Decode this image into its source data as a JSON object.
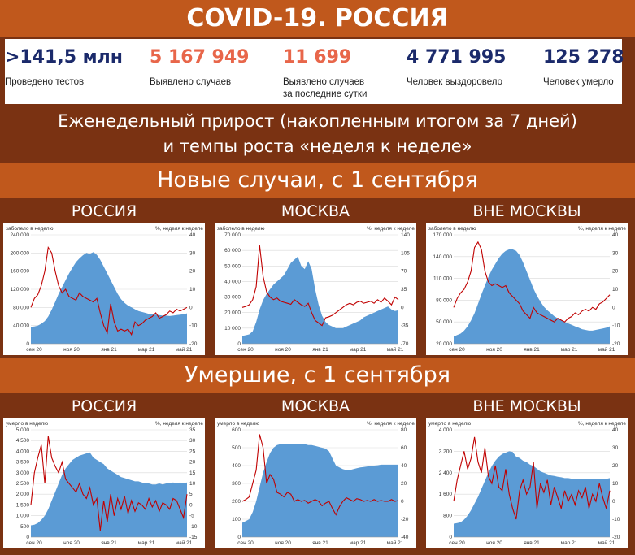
{
  "title": "COVID-19. РОССИЯ",
  "stats": [
    {
      "value": ">141,5 млн",
      "label": "Проведено тестов",
      "label2": "",
      "color": "#1b2a6b"
    },
    {
      "value": "5 167 949",
      "label": "Выявлено случаев",
      "label2": "",
      "color": "#e8664a"
    },
    {
      "value": "11 699",
      "label": "Выявлено случаев",
      "label2": "за последние сутки",
      "color": "#e8664a"
    },
    {
      "value": "4 771 995",
      "label": "Человек выздоровело",
      "label2": "",
      "color": "#1b2a6b"
    },
    {
      "value": "125 278",
      "label": "Человек умерло",
      "label2": "",
      "color": "#1b2a6b"
    }
  ],
  "weekly": {
    "line1": "Еженедельный прирост (накопленным итогом за 7 дней)",
    "line2": "и темпы роста «неделя к неделе»"
  },
  "cases_header": "Новые случаи, с 1 сентября",
  "deaths_header": "Умершие, с 1 сентября",
  "colors": {
    "area": "#5b9bd5",
    "line": "#c00000",
    "band_light": "#c0581c",
    "band_dark": "#7a3212"
  },
  "chart_data": [
    {
      "type": "area",
      "panel": "РОССИЯ",
      "section": "cases",
      "left_label": "заболело в неделю",
      "right_label": "%, неделя к неделе",
      "x_ticks": [
        "сен 20",
        "ноя 20",
        "янв 21",
        "мар 21",
        "май 21"
      ],
      "y_left": {
        "min": 0,
        "max": 240000,
        "ticks": [
          "0",
          "40 000",
          "80 000",
          "120 000",
          "160 000",
          "200 000",
          "240 000"
        ]
      },
      "y_right": {
        "min": -20,
        "max": 40,
        "ticks": [
          "-20",
          "-10",
          "0",
          "10",
          "20",
          "30",
          "40"
        ]
      },
      "area_values": [
        37000,
        38000,
        40000,
        44000,
        50000,
        60000,
        75000,
        92000,
        110000,
        125000,
        140000,
        155000,
        168000,
        180000,
        188000,
        195000,
        200000,
        198000,
        202000,
        196000,
        185000,
        170000,
        155000,
        140000,
        125000,
        110000,
        98000,
        90000,
        84000,
        80000,
        76000,
        72000,
        70000,
        68000,
        66000,
        65000,
        64000,
        63000,
        62000,
        62000,
        61000,
        62000,
        63000,
        64000,
        65000,
        67000
      ],
      "line_values": [
        0,
        5,
        7,
        12,
        20,
        33,
        30,
        20,
        12,
        8,
        10,
        6,
        5,
        4,
        8,
        6,
        5,
        4,
        3,
        5,
        -3,
        -10,
        -14,
        2,
        -8,
        -13,
        -12,
        -13,
        -12,
        -15,
        -8,
        -10,
        -9,
        -7,
        -6,
        -5,
        -3,
        -6,
        -5,
        -4,
        -2,
        -3,
        -1,
        -2,
        -1,
        0
      ]
    },
    {
      "type": "area",
      "panel": "МОСКВА",
      "section": "cases",
      "left_label": "заболело в неделю",
      "right_label": "%, неделя к неделе",
      "x_ticks": [
        "сен 20",
        "ноя 20",
        "янв 21",
        "мар 21",
        "май 21"
      ],
      "y_left": {
        "min": 0,
        "max": 70000,
        "ticks": [
          "0",
          "10 000",
          "20 000",
          "30 000",
          "40 000",
          "50 000",
          "60 000",
          "70 000"
        ]
      },
      "y_right": {
        "min": -70,
        "max": 140,
        "ticks": [
          "-70",
          "-35",
          "0",
          "35",
          "70",
          "105",
          "140"
        ]
      },
      "area_values": [
        5000,
        5500,
        6000,
        8000,
        14000,
        22000,
        28000,
        32000,
        35000,
        38000,
        40000,
        42000,
        44000,
        48000,
        52000,
        54000,
        56000,
        50000,
        48000,
        53000,
        48000,
        35000,
        25000,
        18000,
        14000,
        12000,
        11000,
        10000,
        10000,
        10000,
        11000,
        12000,
        13000,
        14000,
        15000,
        17000,
        18000,
        19000,
        20000,
        21000,
        22000,
        23000,
        24000,
        22000,
        21000,
        21500
      ],
      "line_values": [
        0,
        2,
        5,
        15,
        40,
        120,
        60,
        30,
        20,
        15,
        18,
        12,
        10,
        8,
        6,
        15,
        10,
        5,
        2,
        8,
        -10,
        -25,
        -30,
        -35,
        -20,
        -18,
        -15,
        -10,
        -5,
        0,
        5,
        8,
        5,
        10,
        12,
        8,
        10,
        12,
        8,
        15,
        10,
        18,
        12,
        5,
        20,
        15
      ]
    },
    {
      "type": "area",
      "panel": "ВНЕ МОСКВЫ",
      "section": "cases",
      "left_label": "заболело в неделю",
      "right_label": "%, неделя к неделе",
      "x_ticks": [
        "сен 20",
        "ноя 20",
        "янв 21",
        "мар 21",
        "май 21"
      ],
      "y_left": {
        "min": 20000,
        "max": 170000,
        "ticks": [
          "20 000",
          "50 000",
          "80 000",
          "110 000",
          "140 000",
          "170 000"
        ]
      },
      "y_right": {
        "min": -20,
        "max": 40,
        "ticks": [
          "-20",
          "-10",
          "0",
          "10",
          "20",
          "30",
          "40"
        ]
      },
      "area_values": [
        30000,
        32000,
        34000,
        38000,
        44000,
        52000,
        62000,
        75000,
        88000,
        100000,
        112000,
        122000,
        130000,
        138000,
        144000,
        148000,
        150000,
        150000,
        148000,
        142000,
        132000,
        120000,
        108000,
        96000,
        86000,
        78000,
        71000,
        66000,
        62000,
        58000,
        55000,
        52000,
        50000,
        48000,
        46000,
        44000,
        42000,
        40000,
        39000,
        38000,
        38000,
        39000,
        40000,
        41000,
        42000,
        44000
      ],
      "line_values": [
        0,
        5,
        8,
        10,
        14,
        20,
        33,
        36,
        32,
        20,
        14,
        12,
        13,
        12,
        11,
        12,
        8,
        6,
        4,
        2,
        -2,
        -4,
        -6,
        0,
        -3,
        -4,
        -5,
        -6,
        -7,
        -8,
        -6,
        -7,
        -8,
        -6,
        -5,
        -3,
        -4,
        -2,
        -1,
        -2,
        0,
        -1,
        2,
        3,
        5,
        7
      ]
    },
    {
      "type": "area",
      "panel": "РОССИЯ",
      "section": "deaths",
      "left_label": "умерло в неделю",
      "right_label": "%, неделя к неделе",
      "x_ticks": [
        "сен 20",
        "ноя 20",
        "янв 21",
        "мар 21",
        "май 21"
      ],
      "y_left": {
        "min": 0,
        "max": 5000,
        "ticks": [
          "0",
          "500",
          "1 000",
          "1 500",
          "2 000",
          "2 500",
          "3 000",
          "3 500",
          "4 000",
          "4 500",
          "5 000"
        ]
      },
      "y_right": {
        "min": -15,
        "max": 35,
        "ticks": [
          "-15",
          "-10",
          "-5",
          "0",
          "5",
          "10",
          "15",
          "20",
          "25",
          "30",
          "35"
        ]
      },
      "area_values": [
        550,
        580,
        650,
        800,
        1000,
        1300,
        1700,
        2100,
        2500,
        2900,
        3200,
        3400,
        3600,
        3700,
        3800,
        3850,
        3900,
        3950,
        3700,
        3600,
        3500,
        3400,
        3200,
        3100,
        3000,
        2900,
        2800,
        2750,
        2700,
        2650,
        2600,
        2600,
        2550,
        2500,
        2500,
        2450,
        2450,
        2500,
        2450,
        2500,
        2500,
        2550,
        2500,
        2550,
        2500,
        2550
      ],
      "line_values": [
        0,
        15,
        22,
        28,
        10,
        32,
        22,
        18,
        15,
        20,
        12,
        10,
        8,
        6,
        10,
        5,
        3,
        8,
        0,
        3,
        -12,
        2,
        -8,
        5,
        -5,
        3,
        -2,
        4,
        -4,
        2,
        -3,
        1,
        0,
        -2,
        3,
        -1,
        2,
        -3,
        1,
        0,
        -2,
        3,
        2,
        -2,
        -6,
        5
      ]
    },
    {
      "type": "area",
      "panel": "МОСКВА",
      "section": "deaths",
      "left_label": "умерло в неделю",
      "right_label": "%, неделя к неделе",
      "x_ticks": [
        "сен 20",
        "ноя 20",
        "янв 21",
        "мар 21",
        "май 21"
      ],
      "y_left": {
        "min": 0,
        "max": 600,
        "ticks": [
          "0",
          "100",
          "200",
          "300",
          "400",
          "500",
          "600"
        ]
      },
      "y_right": {
        "min": -40,
        "max": 80,
        "ticks": [
          "-40",
          "-20",
          "0",
          "20",
          "40",
          "60",
          "80"
        ]
      },
      "area_values": [
        80,
        90,
        100,
        140,
        200,
        280,
        360,
        420,
        470,
        500,
        515,
        520,
        520,
        520,
        520,
        520,
        520,
        520,
        520,
        515,
        515,
        510,
        505,
        500,
        495,
        480,
        440,
        400,
        390,
        380,
        375,
        375,
        380,
        385,
        390,
        392,
        395,
        398,
        400,
        402,
        405,
        405,
        405,
        405,
        405,
        405
      ],
      "line_values": [
        0,
        2,
        5,
        20,
        35,
        75,
        60,
        20,
        30,
        25,
        10,
        8,
        5,
        10,
        8,
        0,
        2,
        0,
        1,
        -2,
        0,
        2,
        0,
        -5,
        -2,
        0,
        -8,
        -15,
        -6,
        0,
        4,
        2,
        0,
        3,
        2,
        0,
        1,
        0,
        2,
        0,
        1,
        0,
        0,
        2,
        0,
        1
      ]
    },
    {
      "type": "area",
      "panel": "ВНЕ МОСКВЫ",
      "section": "deaths",
      "left_label": "умерло в неделю",
      "right_label": "%, неделя к неделе",
      "x_ticks": [
        "сен 20",
        "ноя 20",
        "янв 21",
        "мар 21",
        "май 21"
      ],
      "y_left": {
        "min": 0,
        "max": 4000,
        "ticks": [
          "0",
          "800",
          "1 600",
          "2 400",
          "3 200",
          "4 000"
        ]
      },
      "y_right": {
        "min": -20,
        "max": 40,
        "ticks": [
          "-20",
          "-10",
          "0",
          "10",
          "20",
          "30",
          "40"
        ]
      },
      "area_values": [
        500,
        520,
        550,
        650,
        800,
        1000,
        1250,
        1500,
        1800,
        2100,
        2400,
        2650,
        2850,
        3000,
        3100,
        3150,
        3200,
        3180,
        3000,
        2950,
        2850,
        2800,
        2700,
        2650,
        2550,
        2450,
        2400,
        2350,
        2300,
        2280,
        2250,
        2230,
        2200,
        2200,
        2180,
        2150,
        2150,
        2160,
        2150,
        2170,
        2160,
        2180,
        2170,
        2180,
        2170,
        2200
      ],
      "line_values": [
        0,
        12,
        20,
        28,
        18,
        24,
        36,
        22,
        16,
        30,
        14,
        10,
        20,
        8,
        6,
        18,
        4,
        -4,
        -10,
        6,
        12,
        4,
        8,
        22,
        -4,
        10,
        5,
        12,
        -2,
        8,
        2,
        -4,
        6,
        0,
        4,
        -2,
        6,
        2,
        8,
        -4,
        4,
        0,
        10,
        2,
        -4,
        6
      ]
    }
  ]
}
